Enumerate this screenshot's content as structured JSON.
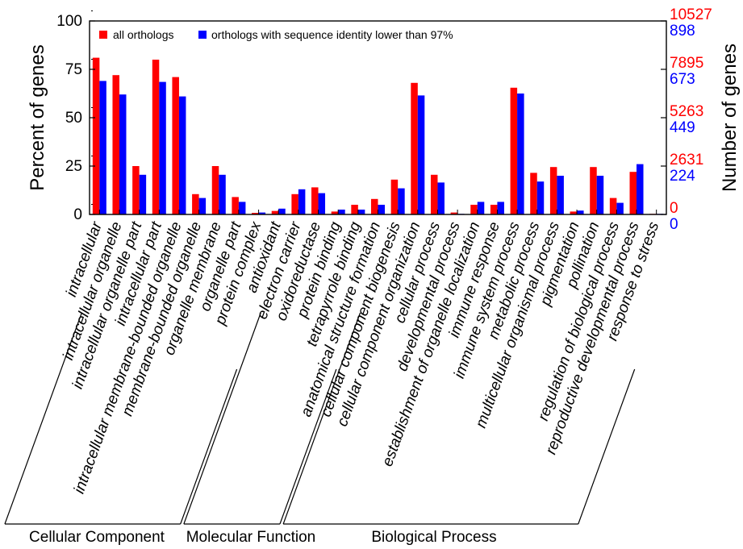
{
  "chart_data": {
    "type": "bar",
    "ylabel_left": "Percent of genes",
    "ylabel_right": "Number of genes",
    "ylim": [
      0,
      100
    ],
    "left_ticks": [
      "0",
      "25",
      "50",
      "75",
      "100"
    ],
    "right_ticks_red": [
      "0",
      "2631",
      "5263",
      "7895",
      "10527"
    ],
    "right_ticks_blue": [
      "0",
      "224",
      "449",
      "673",
      "898"
    ],
    "legend_placement": "top-left",
    "categories": [
      "intracellular",
      "intracellular organelle",
      "intracellular organelle part",
      "intracellular part",
      "intracellular membrane-bounded organelle",
      "membrane-bounded organelle",
      "organelle membrane",
      "organelle part",
      "protein complex",
      "antioxidant",
      "electron carrier",
      "oxidoreductase",
      "protein binding",
      "tetrapyrrole binding",
      "anatomical structure formation",
      "cellular component biogenesis",
      "cellular component organization",
      "cellular process",
      "developmental process",
      "establishment of organelle localization",
      "immune response",
      "immune system process",
      "metabolic process",
      "multicellular organismal process",
      "pigmentation",
      "pollination",
      "regulation of biological process",
      "reproductive developmental process",
      "response to stress"
    ],
    "series": [
      {
        "name": "all orthologs",
        "color": "#ff0000",
        "values": [
          81,
          72,
          25,
          80,
          71,
          10.5,
          25,
          9,
          0.8,
          1.8,
          10.5,
          14,
          1.5,
          5,
          8,
          18,
          68,
          20.5,
          1,
          5,
          5,
          65.5,
          21.5,
          24.5,
          1.5,
          24.5,
          8.5,
          22,
          0.3
        ]
      },
      {
        "name": "orthologs with sequence identity lower than 97%",
        "color": "#0000ff",
        "values": [
          69,
          62,
          20.5,
          68.5,
          61,
          8.5,
          20.5,
          6.5,
          1,
          3,
          13,
          11,
          2.5,
          2.5,
          5,
          13.5,
          61.5,
          16.5,
          0.3,
          6.5,
          6.5,
          62.5,
          17,
          20,
          2,
          20,
          6,
          26,
          0.3
        ]
      }
    ],
    "groups": [
      {
        "label": "Cellular Component",
        "start": 0,
        "end": 8
      },
      {
        "label": "Molecular Function",
        "start": 9,
        "end": 13
      },
      {
        "label": "Biological Process",
        "start": 14,
        "end": 28
      }
    ]
  }
}
